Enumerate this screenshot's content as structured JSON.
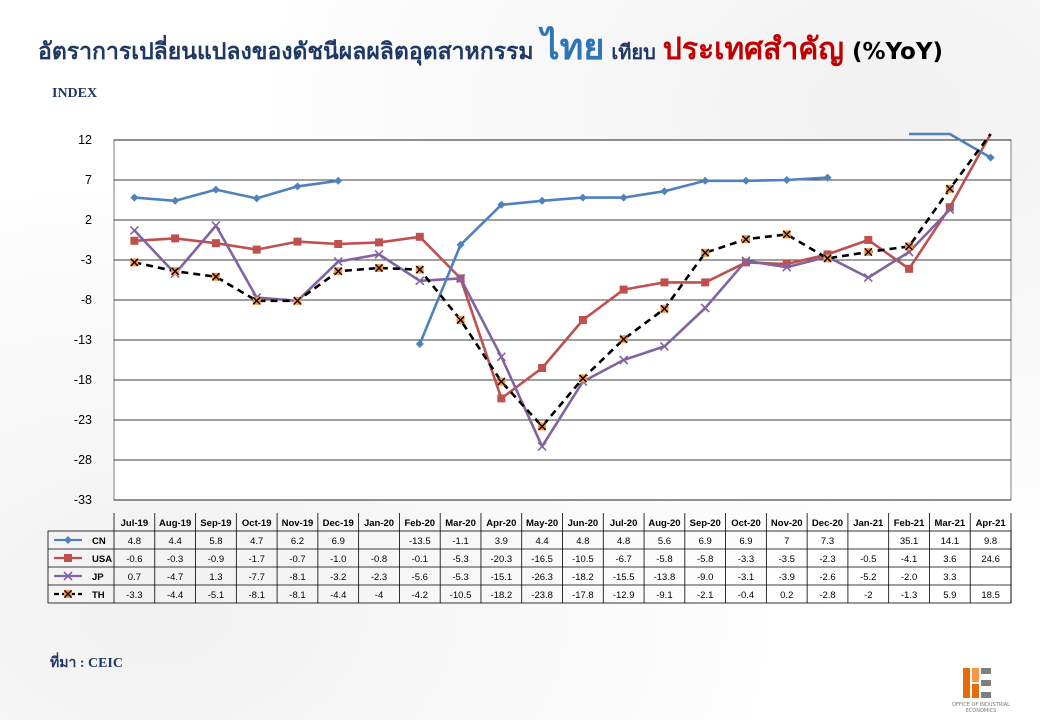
{
  "title": {
    "part1": "อัตราการเปลี่ยนแปลงของดัชนีผลผลิตอุตสาหกรรม ",
    "part2": "ไทย",
    "part3": " เทียบ ",
    "part4": "ประเทศสำคัญ",
    "part5": " (%YoY)"
  },
  "index_label": "INDEX",
  "source": "ที่มา : CEIC",
  "logo": {
    "text": "OFFICE OF INDUSTRIAL ECONOMICS"
  },
  "colors": {
    "CN": "#4f81bd",
    "USA": "#c0504d",
    "JP": "#8064a2",
    "TH": "#000000",
    "TH_marker": "#f79646"
  },
  "chart_data": {
    "type": "line",
    "ylabel": "INDEX",
    "ylim": [
      -33,
      12
    ],
    "yticks": [
      12,
      7,
      2,
      -3,
      -8,
      -13,
      -18,
      -23,
      -28,
      -33
    ],
    "grid": true,
    "legend": "data-table",
    "categories": [
      "Jul-19",
      "Aug-19",
      "Sep-19",
      "Oct-19",
      "Nov-19",
      "Dec-19",
      "Jan-20",
      "Feb-20",
      "Mar-20",
      "Apr-20",
      "May-20",
      "Jun-20",
      "Jul-20",
      "Aug-20",
      "Sep-20",
      "Oct-20",
      "Nov-20",
      "Dec-20",
      "Jan-21",
      "Feb-21",
      "Mar-21",
      "Apr-21"
    ],
    "series": [
      {
        "name": "CN",
        "values": [
          4.8,
          4.4,
          5.8,
          4.7,
          6.2,
          6.9,
          null,
          -13.5,
          -1.1,
          3.9,
          4.4,
          4.8,
          4.8,
          5.6,
          6.9,
          6.9,
          7,
          7.3,
          null,
          35.1,
          14.1,
          9.8
        ],
        "labels": [
          "4.8",
          "4.4",
          "5.8",
          "4.7",
          "6.2",
          "6.9",
          "",
          "-13.5",
          "-1.1",
          "3.9",
          "4.4",
          "4.8",
          "4.8",
          "5.6",
          "6.9",
          "6.9",
          "7",
          "7.3",
          "",
          "35.1",
          "14.1",
          "9.8"
        ]
      },
      {
        "name": "USA",
        "values": [
          -0.6,
          -0.3,
          -0.9,
          -1.7,
          -0.7,
          -1.0,
          -0.8,
          -0.1,
          -5.3,
          -20.3,
          -16.5,
          -10.5,
          -6.7,
          -5.8,
          -5.8,
          -3.3,
          -3.5,
          -2.3,
          -0.5,
          -4.1,
          3.6,
          24.6
        ],
        "labels": [
          "-0.6",
          "-0.3",
          "-0.9",
          "-1.7",
          "-0.7",
          "-1.0",
          "-0.8",
          "-0.1",
          "-5.3",
          "-20.3",
          "-16.5",
          "-10.5",
          "-6.7",
          "-5.8",
          "-5.8",
          "-3.3",
          "-3.5",
          "-2.3",
          "-0.5",
          "-4.1",
          "3.6",
          "24.6"
        ]
      },
      {
        "name": "JP",
        "values": [
          0.7,
          -4.7,
          1.3,
          -7.7,
          -8.1,
          -3.2,
          -2.3,
          -5.6,
          -5.3,
          -15.1,
          -26.3,
          -18.2,
          -15.5,
          -13.8,
          -9.0,
          -3.1,
          -3.9,
          -2.6,
          -5.2,
          -2.0,
          3.3,
          null
        ],
        "labels": [
          "0.7",
          "-4.7",
          "1.3",
          "-7.7",
          "-8.1",
          "-3.2",
          "-2.3",
          "-5.6",
          "-5.3",
          "-15.1",
          "-26.3",
          "-18.2",
          "-15.5",
          "-13.8",
          "-9.0",
          "-3.1",
          "-3.9",
          "-2.6",
          "-5.2",
          "-2.0",
          "3.3",
          ""
        ]
      },
      {
        "name": "TH",
        "values": [
          -3.3,
          -4.4,
          -5.1,
          -8.1,
          -8.1,
          -4.4,
          -4,
          -4.2,
          -10.5,
          -18.2,
          -23.8,
          -17.8,
          -12.9,
          -9.1,
          -2.1,
          -0.4,
          0.2,
          -2.8,
          -2,
          -1.3,
          5.9,
          18.5
        ],
        "labels": [
          "-3.3",
          "-4.4",
          "-5.1",
          "-8.1",
          "-8.1",
          "-4.4",
          "-4",
          "-4.2",
          "-10.5",
          "-18.2",
          "-23.8",
          "-17.8",
          "-12.9",
          "-9.1",
          "-2.1",
          "-0.4",
          "0.2",
          "-2.8",
          "-2",
          "-1.3",
          "5.9",
          "18.5"
        ]
      }
    ]
  }
}
